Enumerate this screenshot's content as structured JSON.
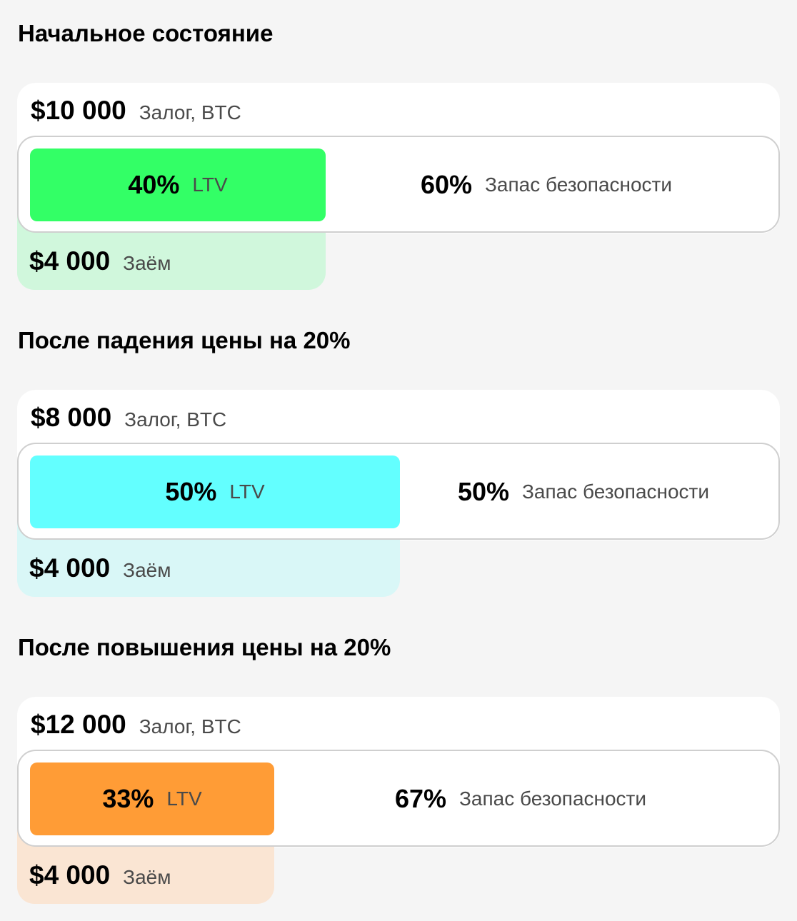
{
  "scenarios": [
    {
      "title": "Начальное состояние",
      "collateral": {
        "amount": "$10 000",
        "label": "Залог, BTC"
      },
      "ltv": {
        "value": "40%",
        "label": "LTV",
        "fraction": 0.4
      },
      "safety": {
        "value": "60%",
        "label": "Запас безопасности"
      },
      "loan": {
        "amount": "$4 000",
        "label": "Заём"
      },
      "colors": {
        "fill": "#33ff66",
        "light": "#d0f7dc"
      }
    },
    {
      "title": "После падения цены на 20%",
      "collateral": {
        "amount": "$8 000",
        "label": "Залог, BTC"
      },
      "ltv": {
        "value": "50%",
        "label": "LTV",
        "fraction": 0.5
      },
      "safety": {
        "value": "50%",
        "label": "Запас безопасности"
      },
      "loan": {
        "amount": "$4 000",
        "label": "Заём"
      },
      "colors": {
        "fill": "#63ffff",
        "light": "#d9f7f7"
      }
    },
    {
      "title": "После повышения цены на 20%",
      "collateral": {
        "amount": "$12 000",
        "label": "Залог, BTC"
      },
      "ltv": {
        "value": "33%",
        "label": "LTV",
        "fraction": 0.33
      },
      "safety": {
        "value": "67%",
        "label": "Запас безопасности"
      },
      "loan": {
        "amount": "$4 000",
        "label": "Заём"
      },
      "colors": {
        "fill": "#ff9c36",
        "light": "#fae5d3"
      }
    }
  ]
}
